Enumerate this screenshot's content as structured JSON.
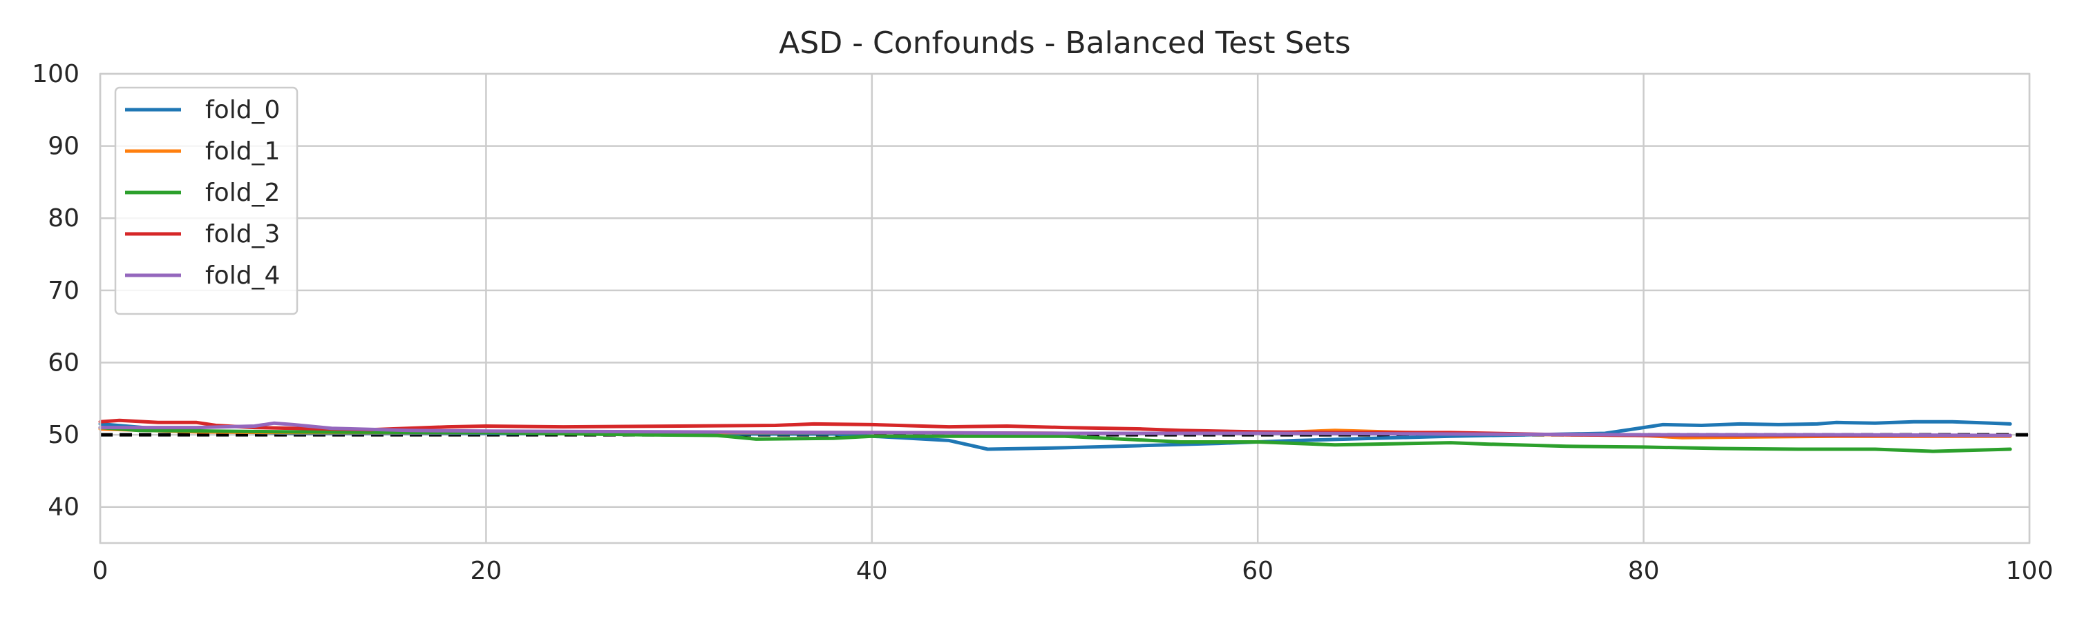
{
  "chart_data": {
    "type": "line",
    "title": "ASD - Confounds - Balanced Test Sets",
    "xlabel": "",
    "ylabel": "",
    "xlim": [
      0,
      100
    ],
    "ylim": [
      35,
      100
    ],
    "xticks": [
      "0",
      "20",
      "40",
      "60",
      "80",
      "100"
    ],
    "yticks": [
      "40",
      "50",
      "60",
      "70",
      "80",
      "90",
      "100"
    ],
    "grid": true,
    "legend_position": "top-left",
    "reference_line": {
      "y": 50,
      "style": "dashed",
      "color": "#000000"
    },
    "series": [
      {
        "name": "fold_0",
        "color": "#1f77b4",
        "points": [
          [
            0,
            51.5
          ],
          [
            4,
            50.6
          ],
          [
            10,
            50.2
          ],
          [
            20,
            50.2
          ],
          [
            30,
            50.1
          ],
          [
            38,
            50.1
          ],
          [
            40,
            49.8
          ],
          [
            44,
            49.2
          ],
          [
            46,
            48.0
          ],
          [
            48,
            48.1
          ],
          [
            50,
            48.2
          ],
          [
            54,
            48.5
          ],
          [
            58,
            48.8
          ],
          [
            62,
            49.2
          ],
          [
            66,
            49.5
          ],
          [
            70,
            49.8
          ],
          [
            74,
            50.0
          ],
          [
            78,
            50.2
          ],
          [
            80,
            51.0
          ],
          [
            81,
            51.4
          ],
          [
            83,
            51.3
          ],
          [
            85,
            51.5
          ],
          [
            87,
            51.4
          ],
          [
            89,
            51.5
          ],
          [
            90,
            51.7
          ],
          [
            92,
            51.6
          ],
          [
            94,
            51.8
          ],
          [
            96,
            51.8
          ],
          [
            98,
            51.6
          ],
          [
            99,
            51.5
          ]
        ]
      },
      {
        "name": "fold_1",
        "color": "#ff7f0e",
        "points": [
          [
            0,
            50.8
          ],
          [
            5,
            50.4
          ],
          [
            10,
            50.3
          ],
          [
            20,
            50.3
          ],
          [
            30,
            50.3
          ],
          [
            40,
            50.3
          ],
          [
            50,
            50.2
          ],
          [
            60,
            50.2
          ],
          [
            64,
            50.6
          ],
          [
            68,
            50.3
          ],
          [
            72,
            50.1
          ],
          [
            76,
            50.0
          ],
          [
            80,
            49.9
          ],
          [
            82,
            49.6
          ],
          [
            90,
            49.8
          ],
          [
            99,
            49.8
          ]
        ]
      },
      {
        "name": "fold_2",
        "color": "#2ca02c",
        "points": [
          [
            0,
            51.0
          ],
          [
            2,
            50.6
          ],
          [
            10,
            50.4
          ],
          [
            20,
            50.3
          ],
          [
            28,
            50.0
          ],
          [
            32,
            49.9
          ],
          [
            34,
            49.4
          ],
          [
            38,
            49.5
          ],
          [
            40,
            49.8
          ],
          [
            50,
            49.8
          ],
          [
            56,
            49.0
          ],
          [
            60,
            49.0
          ],
          [
            64,
            48.6
          ],
          [
            70,
            48.9
          ],
          [
            72,
            48.7
          ],
          [
            76,
            48.4
          ],
          [
            80,
            48.3
          ],
          [
            84,
            48.1
          ],
          [
            88,
            48.0
          ],
          [
            92,
            48.0
          ],
          [
            95,
            47.7
          ],
          [
            99,
            48.0
          ]
        ]
      },
      {
        "name": "fold_3",
        "color": "#d62728",
        "points": [
          [
            0,
            51.8
          ],
          [
            1,
            52.0
          ],
          [
            3,
            51.7
          ],
          [
            5,
            51.7
          ],
          [
            6,
            51.3
          ],
          [
            8,
            51.0
          ],
          [
            10,
            50.9
          ],
          [
            14,
            50.7
          ],
          [
            18,
            51.1
          ],
          [
            20,
            51.2
          ],
          [
            24,
            51.1
          ],
          [
            30,
            51.2
          ],
          [
            35,
            51.3
          ],
          [
            37,
            51.5
          ],
          [
            40,
            51.4
          ],
          [
            44,
            51.1
          ],
          [
            47,
            51.2
          ],
          [
            50,
            51.0
          ],
          [
            54,
            50.8
          ],
          [
            56,
            50.6
          ],
          [
            60,
            50.4
          ],
          [
            64,
            50.3
          ],
          [
            70,
            50.3
          ],
          [
            76,
            50.0
          ],
          [
            80,
            49.9
          ],
          [
            90,
            49.9
          ],
          [
            99,
            49.9
          ]
        ]
      },
      {
        "name": "fold_4",
        "color": "#9467bd",
        "points": [
          [
            0,
            51.0
          ],
          [
            5,
            51.0
          ],
          [
            8,
            51.2
          ],
          [
            9,
            51.6
          ],
          [
            10,
            51.4
          ],
          [
            12,
            50.9
          ],
          [
            16,
            50.6
          ],
          [
            20,
            50.5
          ],
          [
            30,
            50.4
          ],
          [
            40,
            50.3
          ],
          [
            50,
            50.2
          ],
          [
            60,
            50.2
          ],
          [
            70,
            50.1
          ],
          [
            80,
            50.0
          ],
          [
            90,
            50.0
          ],
          [
            99,
            49.9
          ]
        ]
      }
    ]
  }
}
